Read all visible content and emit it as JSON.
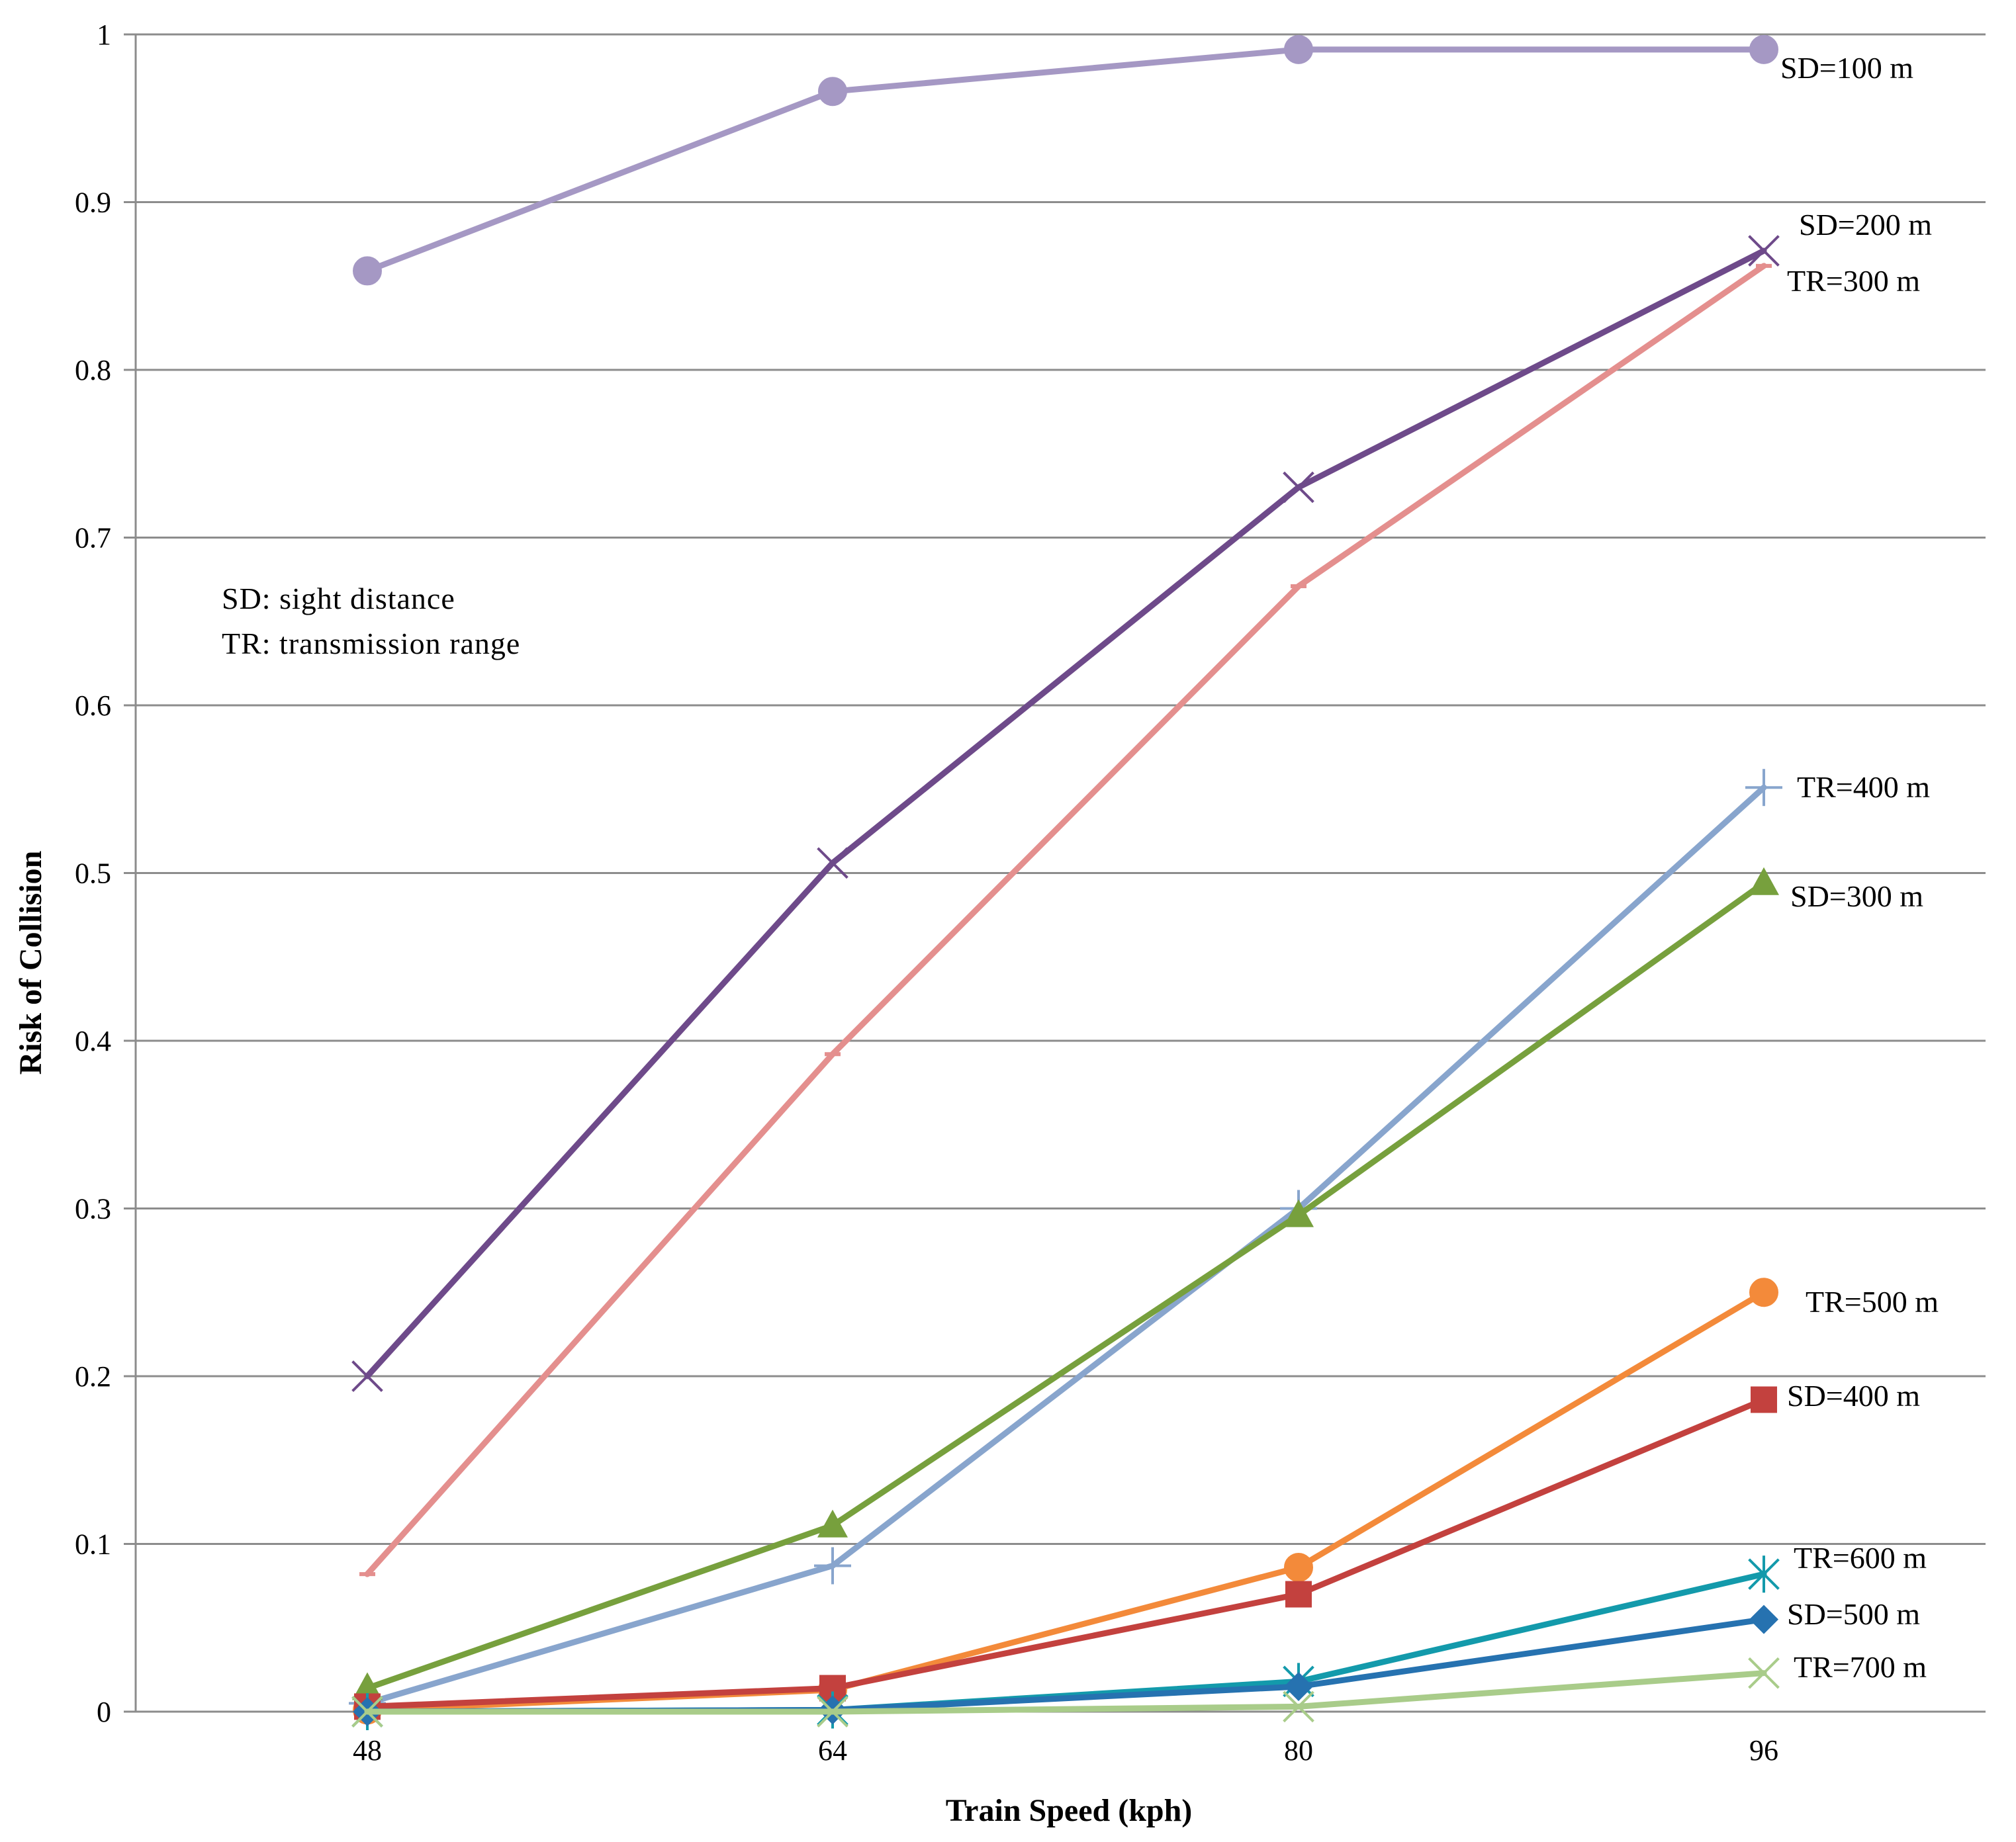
{
  "chart_data": {
    "type": "line",
    "title": "",
    "xlabel": "Train Speed (kph)",
    "ylabel": "Risk of Collision",
    "categories": [
      "48",
      "64",
      "80",
      "96"
    ],
    "ylim": [
      0,
      1
    ],
    "yticks": [
      "0",
      "0.1",
      "0.2",
      "0.3",
      "0.4",
      "0.5",
      "0.6",
      "0.7",
      "0.8",
      "0.9",
      "1"
    ],
    "grid": true,
    "legend": "inline labels at line ends",
    "notes": [
      "SD: sight  distance",
      "TR: transmission  range"
    ],
    "series": [
      {
        "name": "SD=100 m",
        "color": "#a598c4",
        "marker": "circle",
        "values": [
          0.859,
          0.966,
          0.991,
          0.991
        ]
      },
      {
        "name": "SD=200 m",
        "color": "#6e4a8a",
        "marker": "x",
        "values": [
          0.2,
          0.506,
          0.73,
          0.871
        ]
      },
      {
        "name": "TR=300 m",
        "color": "#e48f8e",
        "marker": "dash",
        "values": [
          0.082,
          0.392,
          0.671,
          0.862
        ]
      },
      {
        "name": "TR=400 m",
        "color": "#88a5cd",
        "marker": "plus",
        "values": [
          0.005,
          0.087,
          0.3,
          0.551
        ]
      },
      {
        "name": "SD=300 m",
        "color": "#77a03d",
        "marker": "triangle",
        "values": [
          0.014,
          0.111,
          0.296,
          0.494
        ]
      },
      {
        "name": "TR=500 m",
        "color": "#f38a3a",
        "marker": "circle",
        "values": [
          0.001,
          0.013,
          0.086,
          0.25
        ]
      },
      {
        "name": "SD=400 m",
        "color": "#c3413e",
        "marker": "square",
        "values": [
          0.003,
          0.014,
          0.07,
          0.186
        ]
      },
      {
        "name": "TR=600 m",
        "color": "#139aab",
        "marker": "asterisk",
        "values": [
          0.0,
          0.001,
          0.018,
          0.082
        ]
      },
      {
        "name": "SD=500 m",
        "color": "#2672b0",
        "marker": "diamond",
        "values": [
          0.0,
          0.001,
          0.015,
          0.055
        ]
      },
      {
        "name": "TR=700 m",
        "color": "#a9cc8a",
        "marker": "x",
        "values": [
          0.0,
          0.0,
          0.003,
          0.023
        ]
      }
    ]
  }
}
